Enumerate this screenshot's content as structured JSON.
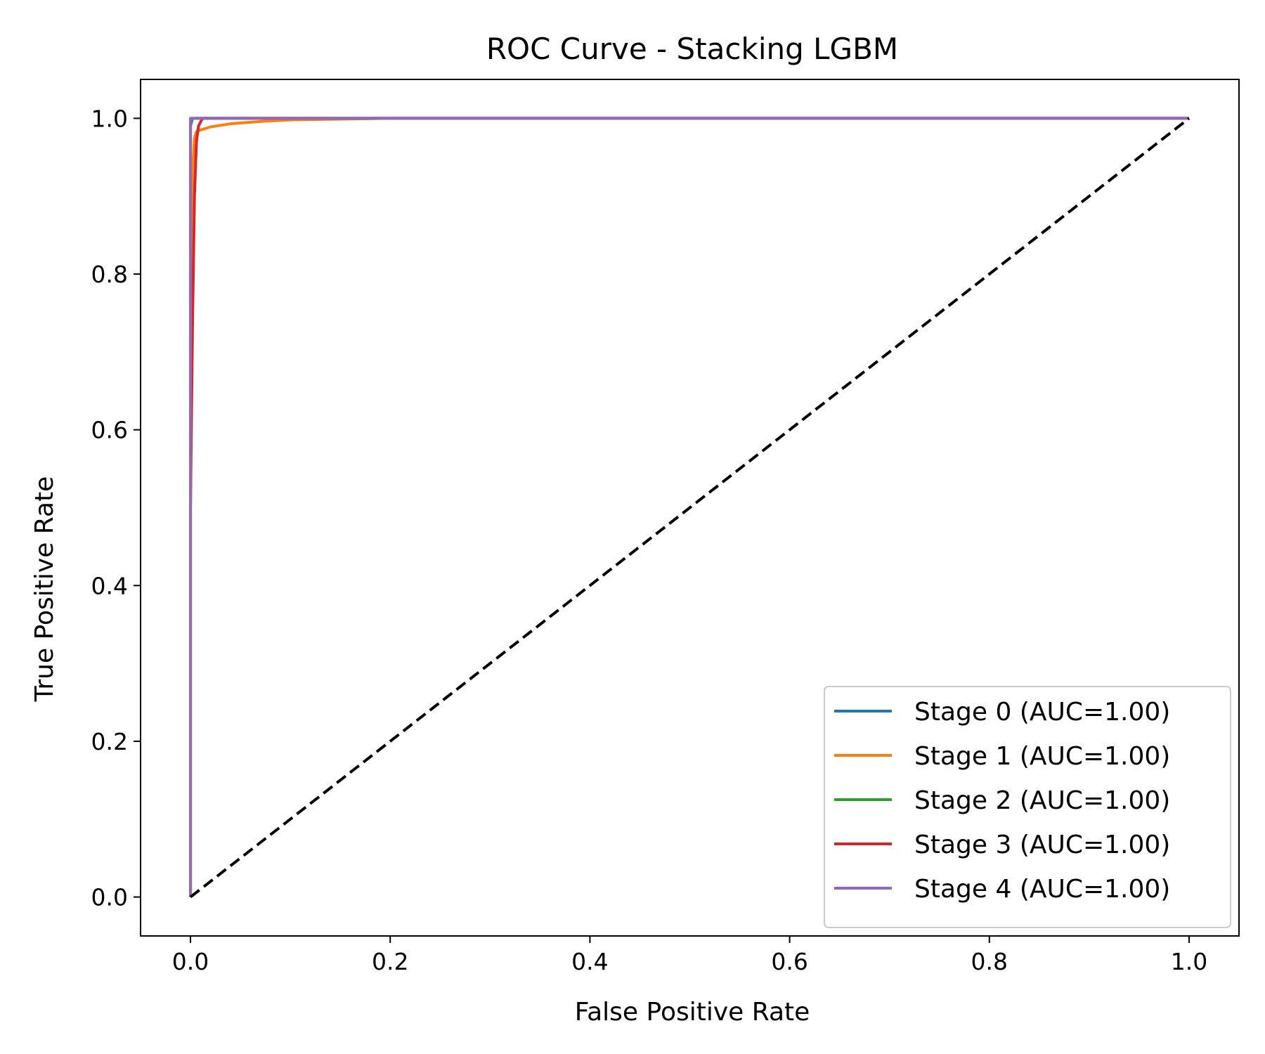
{
  "chart_data": {
    "type": "line",
    "title": "ROC Curve - Stacking LGBM",
    "xlabel": "False Positive Rate",
    "ylabel": "True Positive Rate",
    "xlim": [
      -0.05,
      1.05
    ],
    "ylim": [
      -0.05,
      1.05
    ],
    "xticks": [
      0.0,
      0.2,
      0.4,
      0.6,
      0.8,
      1.0
    ],
    "xtick_labels": [
      "0.0",
      "0.2",
      "0.4",
      "0.6",
      "0.8",
      "1.0"
    ],
    "yticks": [
      0.0,
      0.2,
      0.4,
      0.6,
      0.8,
      1.0
    ],
    "ytick_labels": [
      "0.0",
      "0.2",
      "0.4",
      "0.6",
      "0.8",
      "1.0"
    ],
    "grid": false,
    "legend_position": "lower-right",
    "series": [
      {
        "name": "Stage 0 (AUC=1.00)",
        "color": "#1f77b4",
        "x": [
          0,
          0,
          0.002,
          1.0
        ],
        "y": [
          0,
          0.99,
          1.0,
          1.0
        ]
      },
      {
        "name": "Stage 1 (AUC=1.00)",
        "color": "#ff7f0e",
        "x": [
          0,
          0,
          0.002,
          0.004,
          0.006,
          0.01,
          0.02,
          0.04,
          0.07,
          0.1,
          0.15,
          0.2,
          1.0
        ],
        "y": [
          0,
          0.5,
          0.93,
          0.975,
          0.983,
          0.985,
          0.989,
          0.993,
          0.996,
          0.998,
          0.999,
          1.0,
          1.0
        ]
      },
      {
        "name": "Stage 2 (AUC=1.00)",
        "color": "#2ca02c",
        "x": [
          0,
          0,
          0.002,
          1.0
        ],
        "y": [
          0,
          0.995,
          1.0,
          1.0
        ]
      },
      {
        "name": "Stage 3 (AUC=1.00)",
        "color": "#d62728",
        "x": [
          0,
          0,
          0.002,
          0.004,
          0.006,
          0.008,
          0.012,
          1.0
        ],
        "y": [
          0,
          0.5,
          0.73,
          0.9,
          0.97,
          0.99,
          1.0,
          1.0
        ]
      },
      {
        "name": "Stage 4 (AUC=1.00)",
        "color": "#9467bd",
        "x": [
          0,
          0,
          1.0
        ],
        "y": [
          0,
          1.0,
          1.0
        ]
      }
    ],
    "reference_line": {
      "x": [
        0,
        1
      ],
      "y": [
        0,
        1
      ],
      "color": "#000000",
      "style": "dashed"
    }
  }
}
